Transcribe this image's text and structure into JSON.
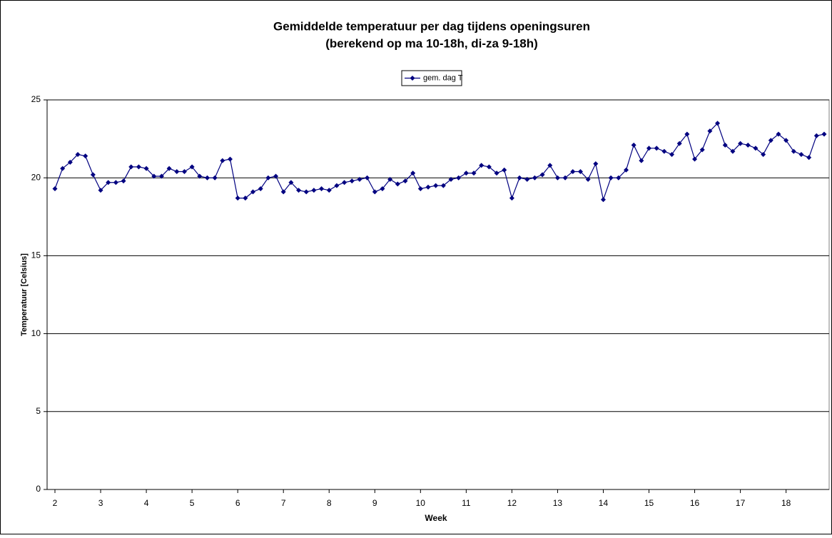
{
  "chart_data": {
    "type": "line",
    "title": "Gemiddelde temperatuur per dag tijdens openingsuren",
    "subtitle": "(berekend op ma 10-18h, di-za 9-18h)",
    "x_label": "Week",
    "y_label": "Temperatuur [Celsius]",
    "categories": [
      "2",
      null,
      null,
      null,
      null,
      null,
      "3",
      null,
      null,
      null,
      null,
      null,
      "4",
      null,
      null,
      null,
      null,
      null,
      "5",
      null,
      null,
      null,
      null,
      null,
      "6",
      null,
      null,
      null,
      null,
      null,
      "7",
      null,
      null,
      null,
      null,
      null,
      "8",
      null,
      null,
      null,
      null,
      null,
      "9",
      null,
      null,
      null,
      null,
      null,
      "10",
      null,
      null,
      null,
      null,
      null,
      "11",
      null,
      null,
      null,
      null,
      null,
      "12",
      null,
      null,
      null,
      null,
      null,
      "13",
      null,
      null,
      null,
      null,
      null,
      "14",
      null,
      null,
      null,
      null,
      null,
      "15",
      null,
      null,
      null,
      null,
      null,
      "16",
      null,
      null,
      null,
      null,
      null,
      "17",
      null,
      null,
      null,
      null,
      null,
      "18",
      null,
      null,
      null,
      null,
      null
    ],
    "series": [
      {
        "name": "gem. dag T",
        "color": "#000080",
        "values": [
          19.3,
          20.6,
          21.0,
          21.5,
          21.4,
          20.2,
          19.2,
          19.7,
          19.7,
          19.8,
          20.7,
          20.7,
          20.6,
          20.1,
          20.1,
          20.6,
          20.4,
          20.4,
          20.7,
          20.1,
          20.0,
          20.0,
          21.1,
          21.2,
          18.7,
          18.7,
          19.1,
          19.3,
          20.0,
          20.1,
          19.1,
          19.7,
          19.2,
          19.1,
          19.2,
          19.3,
          19.2,
          19.5,
          19.7,
          19.8,
          19.9,
          20.0,
          19.1,
          19.3,
          19.9,
          19.6,
          19.8,
          20.3,
          19.3,
          19.4,
          19.5,
          19.5,
          19.9,
          20.0,
          20.3,
          20.3,
          20.8,
          20.7,
          20.3,
          20.5,
          18.7,
          20.0,
          19.9,
          20.0,
          20.2,
          20.8,
          20.0,
          20.0,
          20.4,
          20.4,
          19.9,
          20.9,
          18.6,
          20.0,
          20.0,
          20.5,
          22.1,
          21.1,
          21.9,
          21.9,
          21.7,
          21.5,
          22.2,
          22.8,
          21.2,
          21.8,
          23.0,
          23.5,
          22.1,
          21.7,
          22.2,
          22.1,
          21.9,
          21.5,
          22.4,
          22.8,
          22.4,
          21.7,
          21.5,
          21.3,
          22.7,
          22.8
        ]
      }
    ],
    "ylim": [
      0,
      25
    ],
    "yticks": [
      0,
      5,
      10,
      15,
      20,
      25
    ],
    "grid": true
  }
}
